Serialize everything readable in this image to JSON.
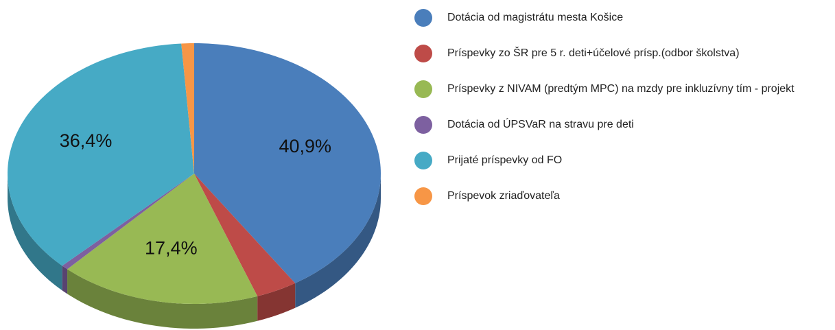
{
  "chart_data": {
    "type": "pie",
    "categories": [
      "Dotácia od magistrátu mesta Košice",
      "Príspevky zo ŠR pre 5 r. deti+účelové prísp.(odbor školstva)",
      "Príspevky z NIVAM (predtým MPC) na mzdy pre inkluzívny tím - projekt",
      "Dotácia od ÚPSVaR na stravu pre deti",
      "Prijaté príspevky od FO",
      "Príspevok zriaďovateľa"
    ],
    "values": [
      40.9,
      3.6,
      17.4,
      0.6,
      36.4,
      1.1
    ],
    "value_labels": [
      "40,9%",
      null,
      "17,4%",
      null,
      "36,4%",
      null
    ],
    "colors": [
      "#4a7ebb",
      "#be4b48",
      "#98b954",
      "#7d60a0",
      "#46aac5",
      "#f79646"
    ],
    "legend": "right"
  }
}
